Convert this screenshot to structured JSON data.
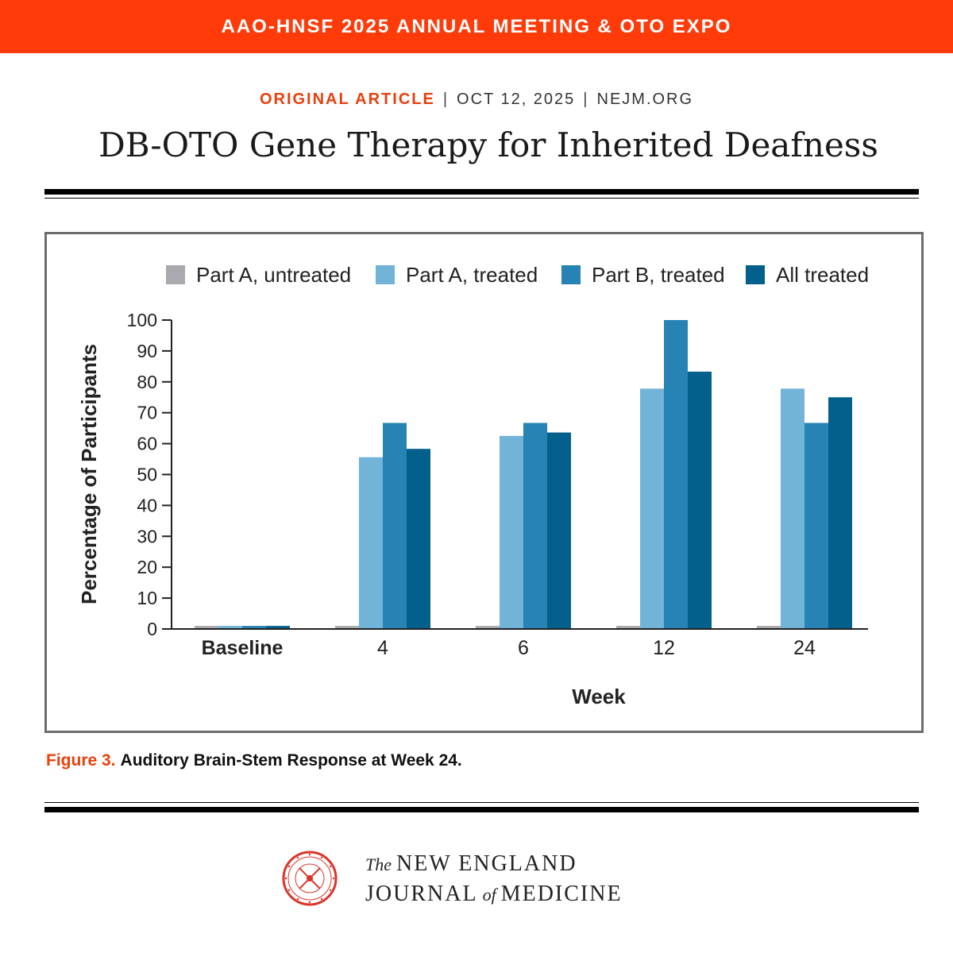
{
  "banner": {
    "text": "AAO-HNSF 2025 ANNUAL MEETING & OTO EXPO",
    "bg": "#ff3b0a"
  },
  "article": {
    "type": "ORIGINAL ARTICLE",
    "date": "OCT 12, 2025",
    "site": "NEJM.ORG",
    "title": "DB-OTO Gene Therapy for Inherited Deafness",
    "accent": "#e8400c"
  },
  "chart_data": {
    "type": "bar",
    "categories": [
      "Baseline",
      "4",
      "6",
      "12",
      "24"
    ],
    "series": [
      {
        "name": "Part A, untreated",
        "color": "#a9a9ae",
        "values": [
          1,
          1,
          1,
          1,
          1
        ]
      },
      {
        "name": "Part A, treated",
        "color": "#72b3d8",
        "values": [
          1,
          55.6,
          62.5,
          77.8,
          77.8
        ]
      },
      {
        "name": "Part B, treated",
        "color": "#2683b3",
        "values": [
          1,
          66.7,
          66.7,
          100,
          66.7
        ]
      },
      {
        "name": "All treated",
        "color": "#03608c",
        "values": [
          1,
          58.3,
          63.6,
          83.3,
          75
        ]
      }
    ],
    "ylim": [
      0,
      100
    ],
    "yticks": [
      "0",
      "10",
      "20",
      "30",
      "40",
      "50",
      "60",
      "70",
      "80",
      "90",
      "100"
    ],
    "xlabel": "Week",
    "ylabel": "Percentage of Participants",
    "legend_position": "top"
  },
  "caption": {
    "label": "Figure 3.",
    "text": "Auditory Brain-Stem Response at Week 24."
  },
  "journal": {
    "the": "The",
    "line1": "NEW ENGLAND",
    "journal_word": "JOURNAL",
    "of": "of",
    "medicine_word": "MEDICINE",
    "seal_icon": "nejm-seal-icon",
    "seal_color": "#d9352a"
  }
}
